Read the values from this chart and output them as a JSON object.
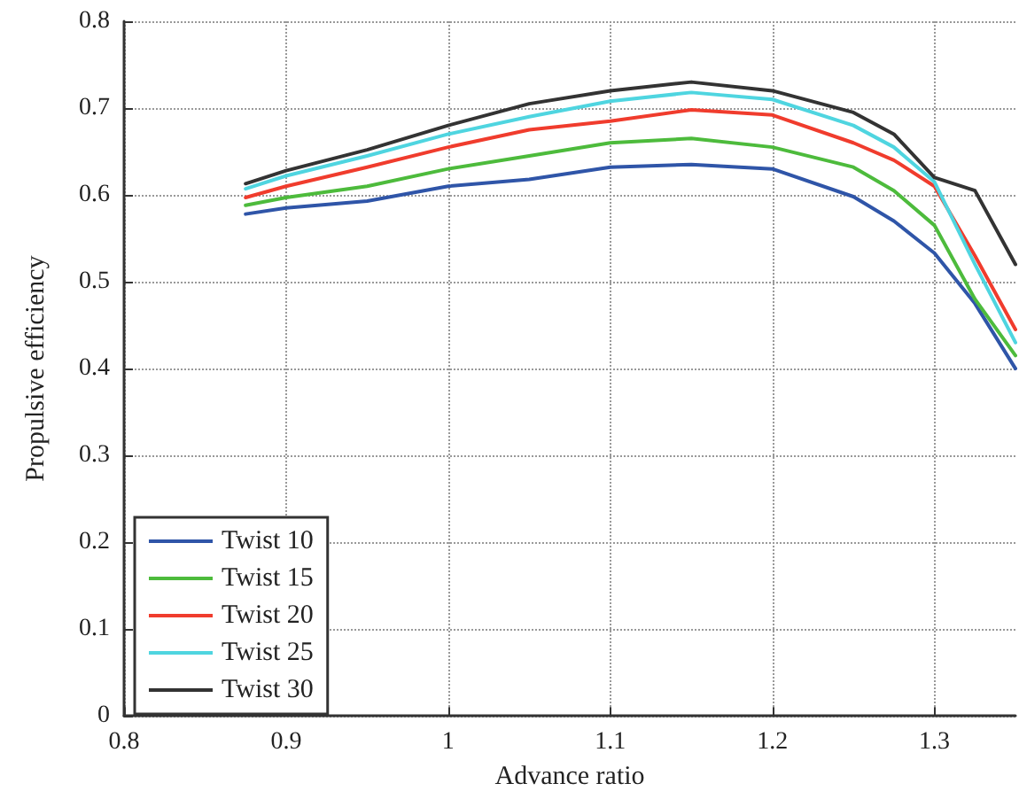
{
  "chart_data": {
    "type": "line",
    "xlabel": "Advance ratio",
    "ylabel": "Propulsive efficiency",
    "x": [
      0.875,
      0.9,
      0.95,
      1.0,
      1.05,
      1.1,
      1.15,
      1.2,
      1.25,
      1.275,
      1.3,
      1.325,
      1.35
    ],
    "series": [
      {
        "name": "Twist 10",
        "color": "#2f55a8",
        "values": [
          0.578,
          0.585,
          0.593,
          0.61,
          0.618,
          0.632,
          0.635,
          0.63,
          0.598,
          0.57,
          0.533,
          0.475,
          0.4
        ]
      },
      {
        "name": "Twist 15",
        "color": "#4dbb3c",
        "values": [
          0.588,
          0.597,
          0.61,
          0.63,
          0.645,
          0.66,
          0.665,
          0.655,
          0.632,
          0.605,
          0.565,
          0.48,
          0.415
        ]
      },
      {
        "name": "Twist 20",
        "color": "#f03c2d",
        "values": [
          0.597,
          0.61,
          0.632,
          0.655,
          0.675,
          0.685,
          0.698,
          0.692,
          0.66,
          0.64,
          0.61,
          0.53,
          0.445
        ]
      },
      {
        "name": "Twist 25",
        "color": "#4fd5e0",
        "values": [
          0.607,
          0.622,
          0.645,
          0.67,
          0.69,
          0.708,
          0.718,
          0.71,
          0.68,
          0.655,
          0.615,
          0.52,
          0.43
        ]
      },
      {
        "name": "Twist 30",
        "color": "#333333",
        "values": [
          0.613,
          0.628,
          0.652,
          0.68,
          0.705,
          0.72,
          0.73,
          0.72,
          0.695,
          0.67,
          0.62,
          0.605,
          0.52
        ]
      }
    ],
    "xlim": [
      0.8,
      1.35
    ],
    "xticks": [
      0.8,
      0.9,
      1,
      1.1,
      1.2,
      1.3
    ],
    "ylim": [
      0,
      0.8
    ],
    "yticks": [
      0,
      0.1,
      0.2,
      0.3,
      0.4,
      0.5,
      0.6,
      0.7,
      0.8
    ],
    "grid": true,
    "legend": "bottom left",
    "marker": "none",
    "line_style": "solid"
  }
}
